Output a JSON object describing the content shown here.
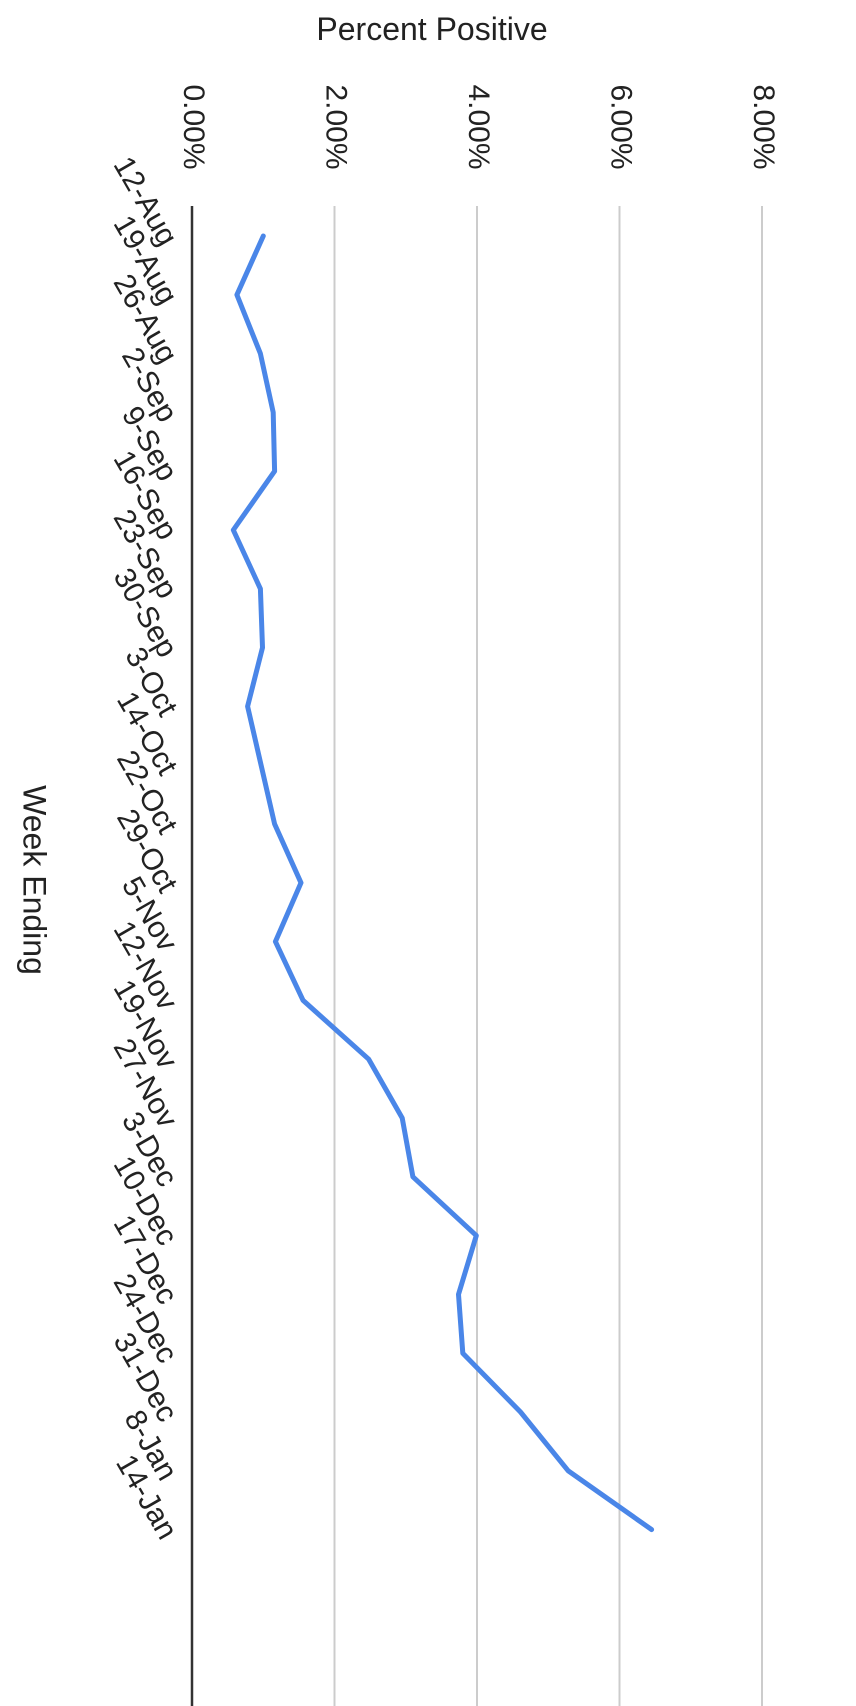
{
  "chart_data": {
    "type": "line",
    "title": "",
    "ylabel": "Percent Positive",
    "xlabel": "Week Ending",
    "orientation": "rotated-90-clockwise",
    "ylim": [
      0,
      8
    ],
    "y_ticks": [
      "0.00%",
      "2.00%",
      "4.00%",
      "6.00%",
      "8.00%"
    ],
    "y_tick_values": [
      0,
      2,
      4,
      6,
      8
    ],
    "grid": true,
    "legend": "none",
    "colors": {
      "line": "#4a86e8",
      "grid": "#cccccc",
      "axis": "#333333"
    },
    "categories": [
      "12-Aug",
      "19-Aug",
      "26-Aug",
      "2-Sep",
      "9-Sep",
      "16-Sep",
      "23-Sep",
      "30-Sep",
      "3-Oct",
      "14-Oct",
      "22-Oct",
      "29-Oct",
      "5-Nov",
      "12-Nov",
      "19-Nov",
      "27-Nov",
      "3-Dec",
      "10-Dec",
      "17-Dec",
      "24-Dec",
      "31-Dec",
      "8-Jan",
      "14-Jan"
    ],
    "values": [
      1.0,
      0.63,
      0.96,
      1.14,
      1.16,
      0.58,
      0.96,
      0.99,
      0.78,
      0.97,
      1.16,
      1.53,
      1.17,
      1.56,
      2.48,
      2.95,
      3.1,
      3.99,
      3.74,
      3.8,
      4.61,
      5.28,
      6.45
    ]
  }
}
